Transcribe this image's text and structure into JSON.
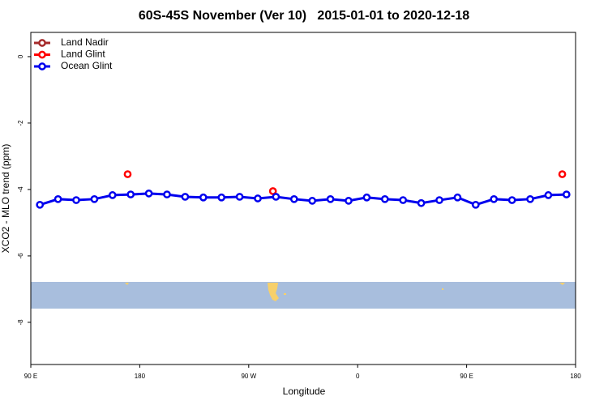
{
  "chart_data": {
    "type": "line",
    "title": "60S-45S November (Ver 10)   2015-01-01 to 2020-12-18",
    "x_label": "Longitude",
    "y_label": "XCO2 - MLO trend (ppm)",
    "xlim": [
      90,
      540
    ],
    "ylim": [
      -9.27,
      0.73
    ],
    "xticks": [
      {
        "value": 90,
        "label": "90 E"
      },
      {
        "value": 180,
        "label": "180"
      },
      {
        "value": 270,
        "label": "90 W"
      },
      {
        "value": 360,
        "label": "0"
      },
      {
        "value": 450,
        "label": "90 E"
      },
      {
        "value": 540,
        "label": "180"
      }
    ],
    "yticks": [
      0,
      -2,
      -4,
      -6,
      -8
    ],
    "legend": "top-left",
    "series": [
      {
        "name": "Land Nadir",
        "color": "#a52a2a",
        "x": [],
        "values": []
      },
      {
        "name": "Land Glint",
        "color": "#ff0000",
        "x": [
          170,
          290,
          529
        ],
        "values": [
          -3.54,
          -4.05,
          -3.54
        ]
      },
      {
        "name": "Ocean Glint",
        "color": "#0000ee",
        "x": [
          97.5,
          112.5,
          127.5,
          142.5,
          157.5,
          172.5,
          187.5,
          202.5,
          217.5,
          232.5,
          247.5,
          262.5,
          277.5,
          292.5,
          307.5,
          322.5,
          337.5,
          352.5,
          367.5,
          382.5,
          397.5,
          412.5,
          427.5,
          442.5,
          457.5,
          472.5,
          487.5,
          502.5,
          517.5,
          532.5
        ],
        "values": [
          -4.46,
          -4.29,
          -4.32,
          -4.29,
          -4.17,
          -4.15,
          -4.12,
          -4.15,
          -4.22,
          -4.24,
          -4.24,
          -4.22,
          -4.27,
          -4.22,
          -4.29,
          -4.34,
          -4.29,
          -4.34,
          -4.24,
          -4.29,
          -4.32,
          -4.41,
          -4.32,
          -4.24,
          -4.46,
          -4.29,
          -4.32,
          -4.29,
          -4.17,
          -4.15
        ]
      }
    ]
  }
}
